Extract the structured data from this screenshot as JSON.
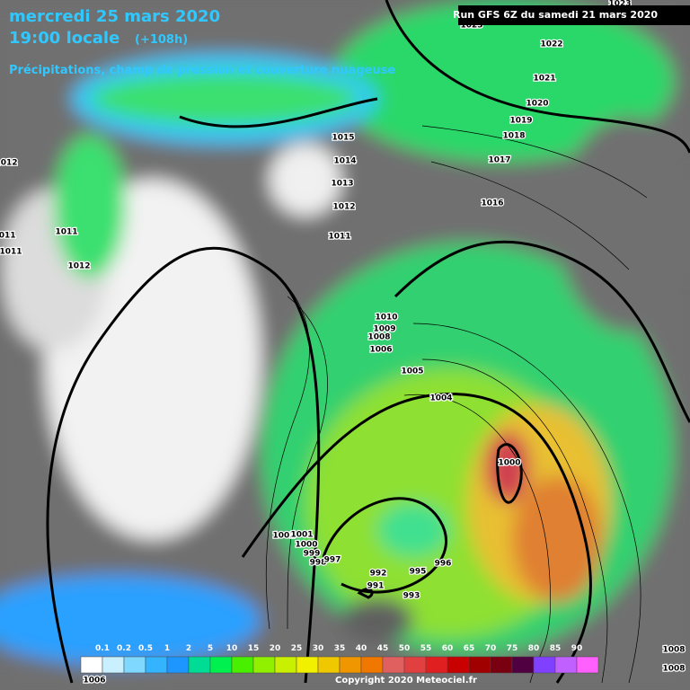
{
  "header": {
    "date": "mercredi 25 mars 2020",
    "time": "19:00 locale",
    "lead": "(+108h)",
    "subtitle": "Précipitations, champ de pression et couverture nuageuse",
    "run": "Run GFS 6Z du samedi 21 mars 2020"
  },
  "isobar_labels": [
    1023,
    1022,
    1021,
    1020,
    1019,
    1018,
    1017,
    1016,
    1015,
    1014,
    1013,
    1012,
    1011,
    1010,
    1009,
    1008,
    1006,
    1005,
    1004,
    1000,
    1002,
    1001,
    1000,
    999,
    998,
    997,
    992,
    991,
    995,
    996,
    993,
    1012,
    1011,
    1011,
    1011,
    1012,
    1008,
    1008,
    1006,
    1023
  ],
  "legend": {
    "labels": [
      0.1,
      0.2,
      0.5,
      1,
      2,
      5,
      10,
      15,
      20,
      25,
      30,
      35,
      40,
      45,
      50,
      55,
      60,
      65,
      70,
      75,
      80,
      85,
      90
    ],
    "colors": [
      "#ffffff",
      "#c8f0ff",
      "#7ed8ff",
      "#34b4ff",
      "#1e96ff",
      "#00dc96",
      "#00f050",
      "#48f000",
      "#90f000",
      "#c8f000",
      "#f0f000",
      "#f0c800",
      "#f09600",
      "#f07800",
      "#e06060",
      "#e04040",
      "#e02020",
      "#c80000",
      "#a00000",
      "#780010",
      "#500040",
      "#8040ff",
      "#c060ff",
      "#ff60ff"
    ]
  },
  "copyright": "Copyright 2020 Meteociel.fr"
}
